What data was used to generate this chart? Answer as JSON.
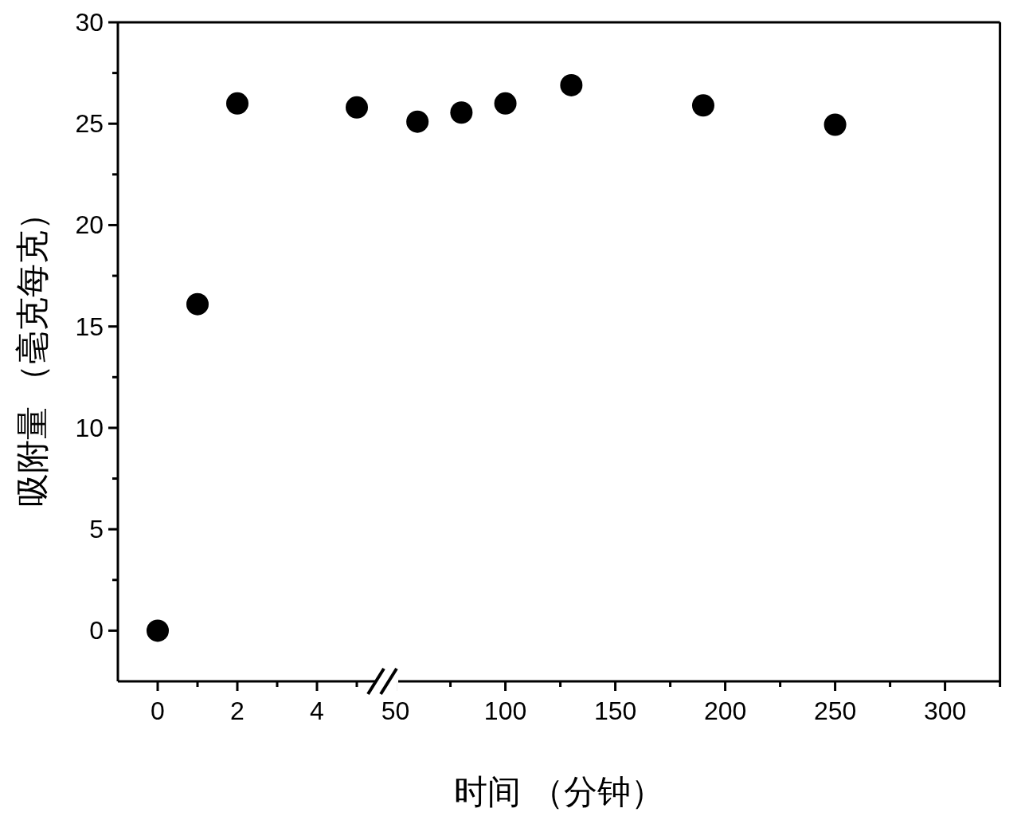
{
  "chart_data": [
    {
      "type": "scatter",
      "ylabel": "吸附量 （毫克每克）",
      "x": [
        0,
        1,
        2,
        5
      ],
      "series": [
        {
          "color": "#000000",
          "values": [
            0,
            16.1,
            26,
            25.8
          ]
        }
      ],
      "xlim": [
        -1,
        5.64
      ],
      "xticks": [
        0,
        {
          "value": 1,
          "label": null
        },
        2,
        {
          "value": 3,
          "label": null
        },
        4,
        {
          "value": 5,
          "label": null
        }
      ],
      "ylim": [
        -2.5,
        30
      ],
      "yticks": [
        0,
        {
          "value": 2.5,
          "label": null
        },
        5,
        {
          "value": 7.5,
          "label": null
        },
        10,
        {
          "value": 12.5,
          "label": null
        },
        15,
        {
          "value": 17.5,
          "label": null
        },
        20,
        {
          "value": 22.5,
          "label": null
        },
        25,
        {
          "value": 27.5,
          "label": null
        },
        30
      ],
      "marker": "circle"
    },
    {
      "type": "scatter",
      "xlabel": "时间 （分钟）",
      "x": [
        60,
        80,
        100,
        130,
        190,
        250
      ],
      "series": [
        {
          "color": "#000000",
          "values": [
            25.1,
            25.55,
            26,
            26.9,
            25.9,
            24.95
          ]
        }
      ],
      "xlim": [
        44,
        325
      ],
      "xticks": [
        50,
        {
          "value": 75,
          "label": null
        },
        100,
        {
          "value": 125,
          "label": null
        },
        150,
        {
          "value": 175,
          "label": null
        },
        200,
        {
          "value": 225,
          "label": null
        },
        250,
        {
          "value": 275,
          "label": null
        },
        300,
        {
          "value": 325,
          "label": null
        }
      ],
      "ylim": [
        -2.5,
        30
      ],
      "tick_labels": "x",
      "marker": "circle"
    }
  ]
}
